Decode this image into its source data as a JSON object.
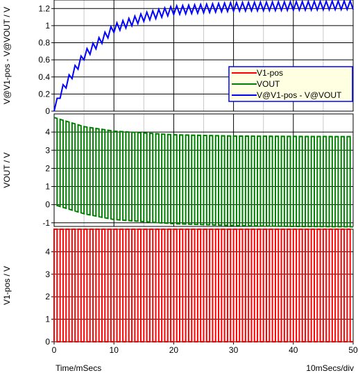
{
  "footer": {
    "left": "Time/mSecs",
    "right": "10mSecs/div"
  },
  "chart_data": [
    {
      "type": "line",
      "panel": "top",
      "ylabel": "V@V1-pos - V@VOUT / V",
      "xlim": [
        0,
        50
      ],
      "ylim": [
        0,
        1.3
      ],
      "yticks": [
        0,
        0.2,
        0.4,
        0.6,
        0.8,
        1,
        1.2
      ],
      "ytick_labels": [
        "0",
        "0.2",
        "0.4",
        "0.6",
        "0.8",
        "1",
        "1.2"
      ],
      "grid": true,
      "legend": {
        "placement": "right",
        "entries": [
          {
            "name": "V1-pos",
            "color": "#ff0000"
          },
          {
            "name": "VOUT",
            "color": "#008000"
          },
          {
            "name": "V@V1-pos - V@VOUT",
            "color": "#0000ff"
          }
        ]
      },
      "series": [
        {
          "name": "V@V1-pos - V@VOUT",
          "color": "#0000ff",
          "period_ms": 1,
          "description": "charging sawtooth rising from 0 toward ~1.24 V",
          "x": [
            0,
            1,
            2,
            5,
            10,
            15,
            20,
            30,
            40,
            50
          ],
          "y": [
            0,
            0.2,
            0.32,
            0.65,
            0.97,
            1.1,
            1.18,
            1.22,
            1.23,
            1.24
          ],
          "ripple": 0.1
        }
      ]
    },
    {
      "type": "line",
      "panel": "middle",
      "ylabel": "VOUT / V",
      "xlim": [
        0,
        50
      ],
      "ylim": [
        -1.2,
        5
      ],
      "yticks": [
        -1,
        0,
        1,
        2,
        3,
        4
      ],
      "ytick_labels": [
        "-1",
        "0",
        "1",
        "2",
        "3",
        "4"
      ],
      "grid": true,
      "series": [
        {
          "name": "VOUT",
          "color": "#008000",
          "period_ms": 1,
          "duty": 0.5,
          "description": "square wave; high level decays 4.8 V to ~3.75 V, low level falls 0 V to ~-1.25 V",
          "x": [
            0,
            5,
            10,
            20,
            30,
            40,
            50
          ],
          "high": [
            4.8,
            4.3,
            4.05,
            3.85,
            3.78,
            3.76,
            3.75
          ],
          "low": [
            0,
            -0.5,
            -0.82,
            -1.05,
            -1.15,
            -1.2,
            -1.22
          ]
        }
      ]
    },
    {
      "type": "line",
      "panel": "bottom",
      "ylabel": "V1-pos / V",
      "xlim": [
        0,
        50
      ],
      "ylim": [
        0,
        5
      ],
      "xticks": [
        0,
        10,
        20,
        30,
        40,
        50
      ],
      "xtick_labels": [
        "0",
        "10",
        "20",
        "30",
        "40",
        "50"
      ],
      "yticks": [
        0,
        1,
        2,
        3,
        4
      ],
      "ytick_labels": [
        "0",
        "1",
        "2",
        "3",
        "4"
      ],
      "grid": true,
      "series": [
        {
          "name": "V1-pos",
          "color": "#ff0000",
          "period_ms": 1,
          "duty": 0.5,
          "description": "square wave switching between 0 V and 5 V",
          "low": 0,
          "high": 5
        }
      ]
    }
  ]
}
